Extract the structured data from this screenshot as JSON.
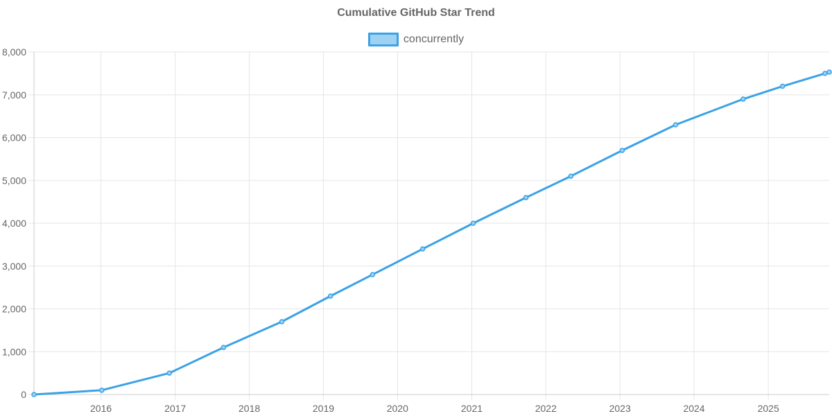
{
  "chart_data": {
    "type": "line",
    "title": "Cumulative GitHub Star Trend",
    "xlabel": "",
    "ylabel": "",
    "ylim": [
      0,
      8000
    ],
    "xlim": [
      "2015-02-05",
      "2025-10-28"
    ],
    "yticks": [
      0,
      1000,
      2000,
      3000,
      4000,
      5000,
      6000,
      7000,
      8000
    ],
    "ytick_labels": [
      "0",
      "1,000",
      "2,000",
      "3,000",
      "4,000",
      "5,000",
      "6,000",
      "7,000",
      "8,000"
    ],
    "xticks": [
      "2016-01-01",
      "2017-01-01",
      "2018-01-01",
      "2019-01-01",
      "2020-01-01",
      "2021-01-01",
      "2022-01-01",
      "2023-01-01",
      "2024-01-01",
      "2025-01-01"
    ],
    "xtick_labels": [
      "2016",
      "2017",
      "2018",
      "2019",
      "2020",
      "2021",
      "2022",
      "2023",
      "2024",
      "2025"
    ],
    "grid": true,
    "legend_position": "top",
    "series": [
      {
        "name": "concurrently",
        "color": "#3aa2e5",
        "fill": "#9fd1f3",
        "points": [
          {
            "x": "2015-02-05",
            "y": 0
          },
          {
            "x": "2016-01-05",
            "y": 100
          },
          {
            "x": "2016-12-03",
            "y": 500
          },
          {
            "x": "2017-08-27",
            "y": 1100
          },
          {
            "x": "2018-06-10",
            "y": 1700
          },
          {
            "x": "2019-02-05",
            "y": 2300
          },
          {
            "x": "2019-08-31",
            "y": 2800
          },
          {
            "x": "2020-05-04",
            "y": 3400
          },
          {
            "x": "2021-01-08",
            "y": 4000
          },
          {
            "x": "2021-09-25",
            "y": 4600
          },
          {
            "x": "2022-05-04",
            "y": 5100
          },
          {
            "x": "2023-01-12",
            "y": 5700
          },
          {
            "x": "2023-10-02",
            "y": 6300
          },
          {
            "x": "2024-08-30",
            "y": 6900
          },
          {
            "x": "2025-03-12",
            "y": 7200
          },
          {
            "x": "2025-10-07",
            "y": 7500
          },
          {
            "x": "2025-10-28",
            "y": 7530
          }
        ]
      }
    ]
  }
}
